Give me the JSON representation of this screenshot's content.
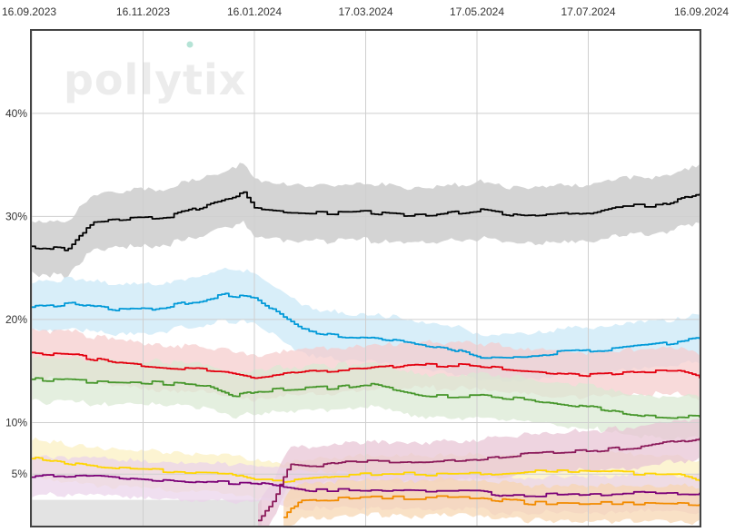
{
  "logo": {
    "text": "pollytix"
  },
  "chart_data": {
    "type": "line",
    "title": "",
    "xlabel": "",
    "ylabel": "",
    "x_ticks": [
      "16.09.2023",
      "16.11.2023",
      "16.01.2024",
      "17.03.2024",
      "17.05.2024",
      "17.07.2024",
      "16.09.2024"
    ],
    "y_ticks": [
      "5%",
      "10%",
      "20%",
      "30%",
      "40%"
    ],
    "y_tick_values": [
      5,
      10,
      20,
      30,
      40
    ],
    "xlim": [
      "2023-09-16",
      "2024-09-16"
    ],
    "ylim": [
      0,
      48
    ],
    "grid": true,
    "legend": "none",
    "series": [
      {
        "color": "#000000",
        "band_color": "#c4c4c4",
        "x": [
          "2023-09-16",
          "2023-10-05",
          "2023-10-12",
          "2023-10-22",
          "2023-11-10",
          "2023-12-01",
          "2023-12-15",
          "2024-01-01",
          "2024-01-10",
          "2024-01-16",
          "2024-02-10",
          "2024-03-05",
          "2024-03-17",
          "2024-04-05",
          "2024-04-25",
          "2024-05-17",
          "2024-06-10",
          "2024-07-01",
          "2024-07-17",
          "2024-08-01",
          "2024-08-25",
          "2024-09-05",
          "2024-09-16"
        ],
        "y": [
          27.1,
          26.8,
          28.2,
          29.6,
          29.8,
          30.0,
          30.8,
          31.8,
          32.3,
          30.7,
          30.4,
          30.3,
          30.4,
          30.1,
          30.2,
          30.6,
          30.0,
          30.2,
          30.4,
          31.0,
          31.0,
          31.6,
          32.2
        ]
      },
      {
        "color": "#0099d8",
        "band_color": "#c9e8f7",
        "x": [
          "2023-09-16",
          "2023-10-10",
          "2023-11-01",
          "2023-11-20",
          "2023-12-10",
          "2024-01-01",
          "2024-01-16",
          "2024-02-01",
          "2024-02-15",
          "2024-03-05",
          "2024-03-17",
          "2024-04-10",
          "2024-05-01",
          "2024-05-17",
          "2024-06-10",
          "2024-07-01",
          "2024-07-17",
          "2024-08-15",
          "2024-09-16"
        ],
        "y": [
          21.2,
          21.6,
          21.0,
          20.9,
          21.6,
          22.4,
          22.1,
          20.2,
          18.7,
          18.3,
          18.2,
          17.7,
          17.2,
          16.4,
          16.3,
          16.8,
          17.0,
          17.4,
          18.1
        ]
      },
      {
        "color": "#e3000f",
        "band_color": "#f5cccc",
        "x": [
          "2023-09-16",
          "2023-10-10",
          "2023-11-01",
          "2023-12-01",
          "2024-01-01",
          "2024-01-16",
          "2024-02-15",
          "2024-03-17",
          "2024-04-10",
          "2024-05-10",
          "2024-06-10",
          "2024-07-17",
          "2024-08-15",
          "2024-09-05",
          "2024-09-16"
        ],
        "y": [
          16.8,
          16.5,
          15.8,
          15.3,
          14.9,
          14.4,
          15.0,
          15.2,
          15.7,
          15.5,
          15.1,
          14.6,
          14.9,
          14.9,
          14.3
        ]
      },
      {
        "color": "#46962b",
        "band_color": "#d9e9d3",
        "x": [
          "2023-09-16",
          "2023-10-15",
          "2023-11-16",
          "2023-12-20",
          "2024-01-05",
          "2024-01-20",
          "2024-03-01",
          "2024-03-17",
          "2024-04-20",
          "2024-05-17",
          "2024-06-15",
          "2024-07-17",
          "2024-08-15",
          "2024-09-16"
        ],
        "y": [
          14.2,
          14.0,
          13.9,
          13.6,
          12.6,
          13.1,
          13.4,
          13.7,
          12.6,
          12.6,
          12.2,
          11.5,
          10.7,
          10.5
        ]
      },
      {
        "color": "#ffd500",
        "band_color": "#fbf0c0",
        "x": [
          "2023-09-16",
          "2023-10-10",
          "2023-11-01",
          "2023-12-01",
          "2024-01-01",
          "2024-01-16",
          "2024-02-01",
          "2024-03-01",
          "2024-04-01",
          "2024-05-17",
          "2024-06-15",
          "2024-07-17",
          "2024-08-15",
          "2024-09-05",
          "2024-09-16"
        ],
        "y": [
          6.5,
          5.9,
          5.5,
          5.3,
          5.2,
          4.4,
          4.4,
          4.9,
          5.0,
          5.0,
          5.3,
          5.2,
          5.1,
          5.1,
          4.3
        ]
      },
      {
        "color": "#8b1a5a",
        "band_color": "#e8c4d4",
        "x": [
          "2024-01-18",
          "2024-01-26",
          "2024-02-05",
          "2024-02-20",
          "2024-03-05",
          "2024-04-05",
          "2024-05-17",
          "2024-06-15",
          "2024-07-17",
          "2024-08-15",
          "2024-09-16"
        ],
        "y": [
          0.5,
          2.5,
          6.1,
          5.8,
          6.2,
          6.2,
          6.5,
          7.0,
          7.2,
          7.7,
          8.5
        ]
      },
      {
        "color": "#7b0077",
        "band_color": "#ead2ea",
        "x": [
          "2023-09-16",
          "2023-10-20",
          "2023-11-20",
          "2023-12-20",
          "2024-01-16",
          "2024-02-16",
          "2024-03-17",
          "2024-04-17",
          "2024-05-17",
          "2024-06-01",
          "2024-07-01",
          "2024-08-01",
          "2024-09-16"
        ],
        "y": [
          4.7,
          4.9,
          4.5,
          4.2,
          4.1,
          3.4,
          3.4,
          3.3,
          3.3,
          2.9,
          3.0,
          3.1,
          3.2
        ]
      },
      {
        "color": "#f28b00",
        "band_color": "#f7d5b0",
        "x": [
          "2024-02-01",
          "2024-02-10",
          "2024-03-17",
          "2024-04-17",
          "2024-05-17",
          "2024-06-15",
          "2024-07-17",
          "2024-08-15",
          "2024-09-16"
        ],
        "y": [
          0.8,
          2.5,
          2.7,
          2.7,
          2.7,
          2.2,
          2.2,
          2.2,
          2.1
        ]
      }
    ]
  }
}
